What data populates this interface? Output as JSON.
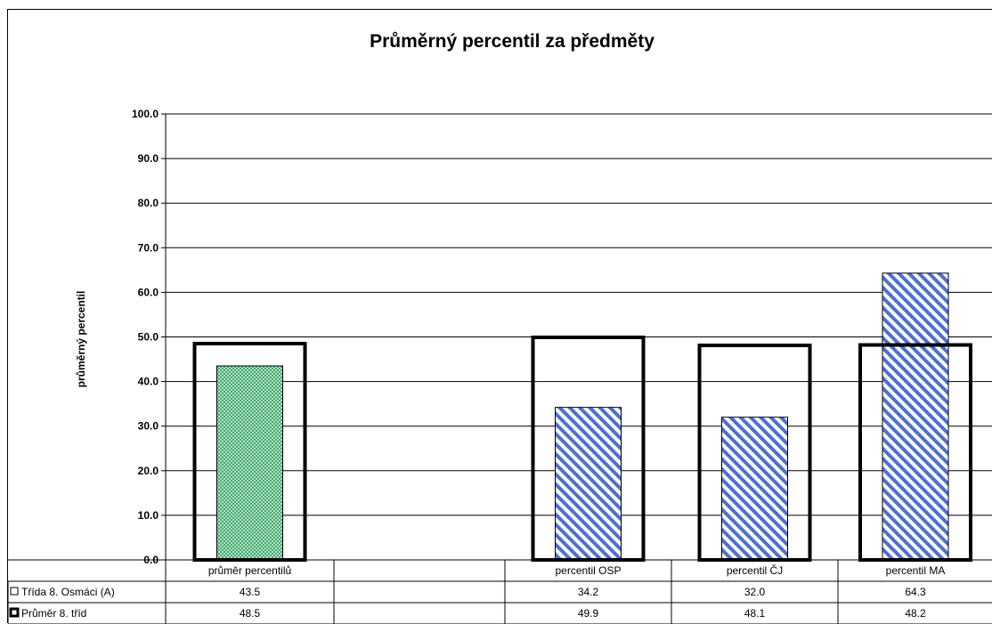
{
  "chart_data": {
    "type": "bar",
    "title": "Průměrný percentil za předměty",
    "ylabel": "průměrný percentil",
    "ylim": [
      0,
      100
    ],
    "yticks": [
      "0.0",
      "10.0",
      "20.0",
      "30.0",
      "40.0",
      "50.0",
      "60.0",
      "70.0",
      "80.0",
      "90.0",
      "100.0"
    ],
    "grid": true,
    "categories": [
      "průměr percentilů",
      "",
      "percentil OSP",
      "percentil ČJ",
      "percentil MA"
    ],
    "series": [
      {
        "name": "Třída 8. Osmáci (A)",
        "values": [
          43.5,
          null,
          34.2,
          32.0,
          64.3
        ],
        "labels": [
          "43.5",
          "",
          "34.2",
          "32.0",
          "64.3"
        ],
        "style": "inner-hatched-bar"
      },
      {
        "name": "Průměr 8. tříd",
        "values": [
          48.5,
          null,
          49.9,
          48.1,
          48.2
        ],
        "labels": [
          "48.5",
          "",
          "49.9",
          "48.1",
          "48.2"
        ],
        "style": "outline-bar"
      }
    ],
    "colors": {
      "first_bar_fill": "#3faa6d",
      "hatch_fill": "#4f6fd0",
      "outline": "#000000",
      "grid": "#000000"
    },
    "legend": "data-table"
  }
}
